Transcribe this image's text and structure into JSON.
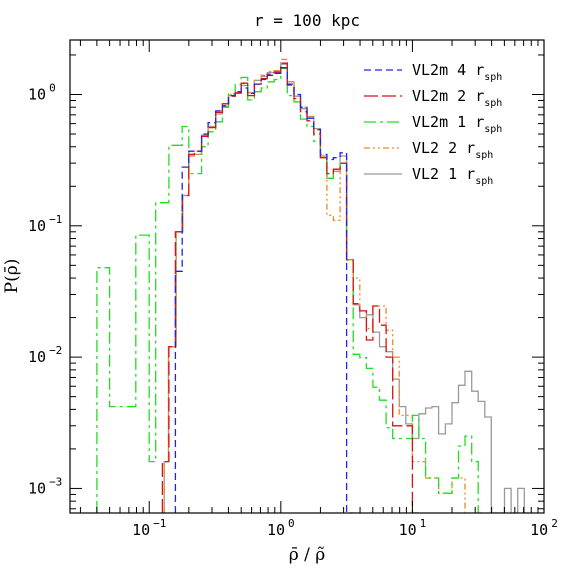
{
  "chart_data": {
    "type": "line",
    "title": "r = 100 kpc",
    "xlabel": "ρ̄ / ρ̃",
    "ylabel": "P(ρ̄)",
    "xscale": "log",
    "yscale": "log",
    "xlim": [
      0.025,
      100
    ],
    "ylim": [
      0.00065,
      2.6
    ],
    "grid": false,
    "legend_position": "top-right",
    "x_ticks": [
      {
        "value": 0.1,
        "base": "10",
        "exp": "−1"
      },
      {
        "value": 1,
        "base": "10",
        "exp": "0"
      },
      {
        "value": 10,
        "base": "10",
        "exp": "1"
      },
      {
        "value": 100,
        "base": "10",
        "exp": "2"
      }
    ],
    "y_ticks": [
      {
        "value": 0.001,
        "base": "10",
        "exp": "−3"
      },
      {
        "value": 0.01,
        "base": "10",
        "exp": "−2"
      },
      {
        "value": 0.1,
        "base": "10",
        "exp": "−1"
      },
      {
        "value": 1,
        "base": "10",
        "exp": "0"
      }
    ],
    "series": [
      {
        "name": "VL2 1",
        "name_sub": "sph",
        "name_prefix": "r",
        "color": "#999999",
        "dash": "",
        "steps": [
          [
            0.13,
            0.0016
          ],
          [
            0.14,
            0.012
          ],
          [
            0.16,
            0.09
          ],
          [
            0.18,
            0.17
          ],
          [
            0.2,
            0.34
          ],
          [
            0.22,
            0.35
          ],
          [
            0.25,
            0.49
          ],
          [
            0.28,
            0.57
          ],
          [
            0.32,
            0.71
          ],
          [
            0.36,
            0.81
          ],
          [
            0.4,
            0.98
          ],
          [
            0.45,
            1.02
          ],
          [
            0.5,
            1.17
          ],
          [
            0.56,
            1.03
          ],
          [
            0.63,
            1.28
          ],
          [
            0.71,
            1.37
          ],
          [
            0.79,
            1.47
          ],
          [
            0.89,
            1.51
          ],
          [
            1.0,
            1.7
          ],
          [
            1.12,
            1.25
          ],
          [
            1.26,
            0.97
          ],
          [
            1.41,
            0.78
          ],
          [
            1.58,
            0.68
          ],
          [
            1.78,
            0.55
          ],
          [
            2.0,
            0.34
          ],
          [
            2.24,
            0.23
          ],
          [
            2.51,
            0.26
          ],
          [
            2.82,
            0.34
          ],
          [
            3.16,
            0.055
          ],
          [
            3.55,
            0.025
          ],
          [
            3.98,
            0.02
          ],
          [
            4.47,
            0.021
          ],
          [
            5.01,
            0.0155
          ],
          [
            5.62,
            0.012
          ],
          [
            6.31,
            0.011
          ],
          [
            7.08,
            0.0068
          ],
          [
            7.94,
            0.0042
          ],
          [
            8.91,
            0.0031
          ],
          [
            10.0,
            0.0024
          ],
          [
            11.2,
            0.0037
          ],
          [
            12.6,
            0.0041
          ],
          [
            14.1,
            0.0042
          ],
          [
            15.8,
            0.0026
          ],
          [
            17.8,
            0.0031
          ],
          [
            20.0,
            0.0045
          ],
          [
            22.4,
            0.0061
          ],
          [
            25.1,
            0.0078
          ],
          [
            28.2,
            0.0055
          ],
          [
            31.6,
            0.0046
          ],
          [
            35.5,
            0.0035
          ],
          [
            39.8,
            0.00065
          ],
          [
            44.7,
            0.00065
          ],
          [
            50.1,
            0.001
          ],
          [
            56.2,
            0.00065
          ],
          [
            63.1,
            0.001
          ],
          [
            70.8,
            0.00065
          ]
        ]
      },
      {
        "name": "VL2 2",
        "name_sub": "sph",
        "name_prefix": "r",
        "color": "#ee8822",
        "dash": "6 3 2 3 2 3",
        "steps": [
          [
            0.13,
            0.0016
          ],
          [
            0.14,
            0.012
          ],
          [
            0.16,
            0.09
          ],
          [
            0.18,
            0.17
          ],
          [
            0.2,
            0.34
          ],
          [
            0.22,
            0.35
          ],
          [
            0.25,
            0.49
          ],
          [
            0.28,
            0.57
          ],
          [
            0.32,
            0.75
          ],
          [
            0.36,
            0.85
          ],
          [
            0.4,
            1.0
          ],
          [
            0.45,
            1.05
          ],
          [
            0.5,
            1.21
          ],
          [
            0.56,
            1.03
          ],
          [
            0.63,
            1.28
          ],
          [
            0.71,
            1.4
          ],
          [
            0.79,
            1.5
          ],
          [
            0.89,
            1.52
          ],
          [
            1.0,
            1.85
          ],
          [
            1.12,
            1.25
          ],
          [
            1.26,
            1.0
          ],
          [
            1.41,
            0.8
          ],
          [
            1.58,
            0.68
          ],
          [
            1.78,
            0.55
          ],
          [
            2.0,
            0.34
          ],
          [
            2.24,
            0.12
          ],
          [
            2.51,
            0.11
          ],
          [
            2.82,
            0.3
          ],
          [
            3.16,
            0.055
          ],
          [
            3.55,
            0.04
          ],
          [
            3.98,
            0.0225
          ],
          [
            4.47,
            0.0165
          ],
          [
            5.01,
            0.0245
          ],
          [
            5.62,
            0.0245
          ],
          [
            6.31,
            0.016
          ],
          [
            7.08,
            0.01
          ],
          [
            7.94,
            0.0036
          ],
          [
            8.91,
            0.0036
          ],
          [
            10.0,
            0.0016
          ],
          [
            11.2,
            0.0016
          ],
          [
            12.6,
            0.0012
          ],
          [
            14.1,
            0.0012
          ],
          [
            15.8,
            0.00092
          ],
          [
            17.8,
            0.00092
          ],
          [
            20.0,
            0.0012
          ],
          [
            22.4,
            0.0012
          ],
          [
            25.1,
            0.00065
          ]
        ]
      },
      {
        "name": "VL2m 1",
        "name_sub": "sph",
        "name_prefix": "r",
        "color": "#22dd22",
        "dash": "12 4 3 4",
        "steps": [
          [
            0.04,
            0.048
          ],
          [
            0.045,
            0.048
          ],
          [
            0.05,
            0.0042
          ],
          [
            0.056,
            0.0042
          ],
          [
            0.063,
            0.0042
          ],
          [
            0.071,
            0.0042
          ],
          [
            0.079,
            0.085
          ],
          [
            0.089,
            0.085
          ],
          [
            0.1,
            0.0016
          ],
          [
            0.112,
            0.15
          ],
          [
            0.126,
            0.15
          ],
          [
            0.141,
            0.41
          ],
          [
            0.158,
            0.41
          ],
          [
            0.178,
            0.57
          ],
          [
            0.2,
            0.25
          ],
          [
            0.22,
            0.25
          ],
          [
            0.25,
            0.4
          ],
          [
            0.28,
            0.52
          ],
          [
            0.32,
            0.62
          ],
          [
            0.36,
            0.8
          ],
          [
            0.4,
            1.01
          ],
          [
            0.45,
            1.19
          ],
          [
            0.5,
            1.35
          ],
          [
            0.56,
            0.91
          ],
          [
            0.63,
            1.05
          ],
          [
            0.71,
            1.12
          ],
          [
            0.79,
            1.25
          ],
          [
            0.89,
            1.3
          ],
          [
            1.0,
            1.58
          ],
          [
            1.12,
            0.98
          ],
          [
            1.26,
            0.88
          ],
          [
            1.41,
            0.65
          ],
          [
            1.58,
            0.57
          ],
          [
            1.78,
            0.44
          ],
          [
            2.0,
            0.33
          ],
          [
            2.24,
            0.23
          ],
          [
            2.51,
            0.27
          ],
          [
            2.82,
            0.3
          ],
          [
            3.16,
            0.055
          ],
          [
            3.55,
            0.0105
          ],
          [
            3.98,
            0.0099
          ],
          [
            4.47,
            0.0082
          ],
          [
            5.01,
            0.0059
          ],
          [
            5.62,
            0.0047
          ],
          [
            6.31,
            0.0029
          ],
          [
            7.08,
            0.0024
          ],
          [
            7.94,
            0.0024
          ],
          [
            8.91,
            0.0024
          ],
          [
            10.0,
            0.0036
          ],
          [
            11.2,
            0.0024
          ],
          [
            12.6,
            0.0012
          ],
          [
            14.1,
            0.0012
          ],
          [
            15.8,
            0.00092
          ],
          [
            17.8,
            0.00092
          ],
          [
            20.0,
            0.0012
          ],
          [
            22.4,
            0.0021
          ],
          [
            25.1,
            0.0025
          ],
          [
            28.2,
            0.0016
          ],
          [
            31.6,
            0.00065
          ]
        ]
      },
      {
        "name": "VL2m 2",
        "name_sub": "sph",
        "name_prefix": "r",
        "color": "#dd1111",
        "dash": "14 4",
        "steps": [
          [
            0.126,
            0.0016
          ],
          [
            0.141,
            0.012
          ],
          [
            0.158,
            0.09
          ],
          [
            0.178,
            0.17
          ],
          [
            0.2,
            0.35
          ],
          [
            0.22,
            0.37
          ],
          [
            0.25,
            0.48
          ],
          [
            0.28,
            0.56
          ],
          [
            0.32,
            0.73
          ],
          [
            0.36,
            0.85
          ],
          [
            0.4,
            0.97
          ],
          [
            0.45,
            1.03
          ],
          [
            0.5,
            1.22
          ],
          [
            0.56,
            0.98
          ],
          [
            0.63,
            1.2
          ],
          [
            0.71,
            1.32
          ],
          [
            0.79,
            1.43
          ],
          [
            0.89,
            1.48
          ],
          [
            1.0,
            1.73
          ],
          [
            1.12,
            1.18
          ],
          [
            1.26,
            0.93
          ],
          [
            1.41,
            0.74
          ],
          [
            1.58,
            0.63
          ],
          [
            1.78,
            0.5
          ],
          [
            2.0,
            0.33
          ],
          [
            2.24,
            0.25
          ],
          [
            2.51,
            0.27
          ],
          [
            2.82,
            0.3
          ],
          [
            3.16,
            0.055
          ],
          [
            3.55,
            0.0255
          ],
          [
            3.98,
            0.0225
          ],
          [
            4.47,
            0.0135
          ],
          [
            5.01,
            0.0245
          ],
          [
            5.62,
            0.0175
          ],
          [
            6.31,
            0.01
          ],
          [
            7.08,
            0.003
          ],
          [
            7.94,
            0.003
          ],
          [
            8.91,
            0.003
          ],
          [
            10.0,
            0.00065
          ]
        ]
      },
      {
        "name": "VL2m 4",
        "name_sub": "sph",
        "name_prefix": "r",
        "color": "#2222ee",
        "dash": "7 4",
        "steps": [
          [
            0.158,
            0.045
          ],
          [
            0.178,
            0.28
          ],
          [
            0.2,
            0.37
          ],
          [
            0.22,
            0.37
          ],
          [
            0.25,
            0.5
          ],
          [
            0.28,
            0.61
          ],
          [
            0.32,
            0.75
          ],
          [
            0.36,
            0.82
          ],
          [
            0.4,
            0.98
          ],
          [
            0.45,
            1.05
          ],
          [
            0.5,
            1.12
          ],
          [
            0.56,
            1.02
          ],
          [
            0.63,
            1.2
          ],
          [
            0.71,
            1.3
          ],
          [
            0.79,
            1.4
          ],
          [
            0.89,
            1.45
          ],
          [
            1.0,
            1.6
          ],
          [
            1.12,
            1.2
          ],
          [
            1.26,
            1.0
          ],
          [
            1.41,
            0.8
          ],
          [
            1.58,
            0.66
          ],
          [
            1.78,
            0.54
          ],
          [
            2.0,
            0.35
          ],
          [
            2.24,
            0.32
          ],
          [
            2.51,
            0.33
          ],
          [
            2.82,
            0.36
          ],
          [
            3.16,
            0.00065
          ]
        ]
      }
    ],
    "legend_order": [
      "VL2m 4",
      "VL2m 2",
      "VL2m 1",
      "VL2 2",
      "VL2 1"
    ]
  }
}
